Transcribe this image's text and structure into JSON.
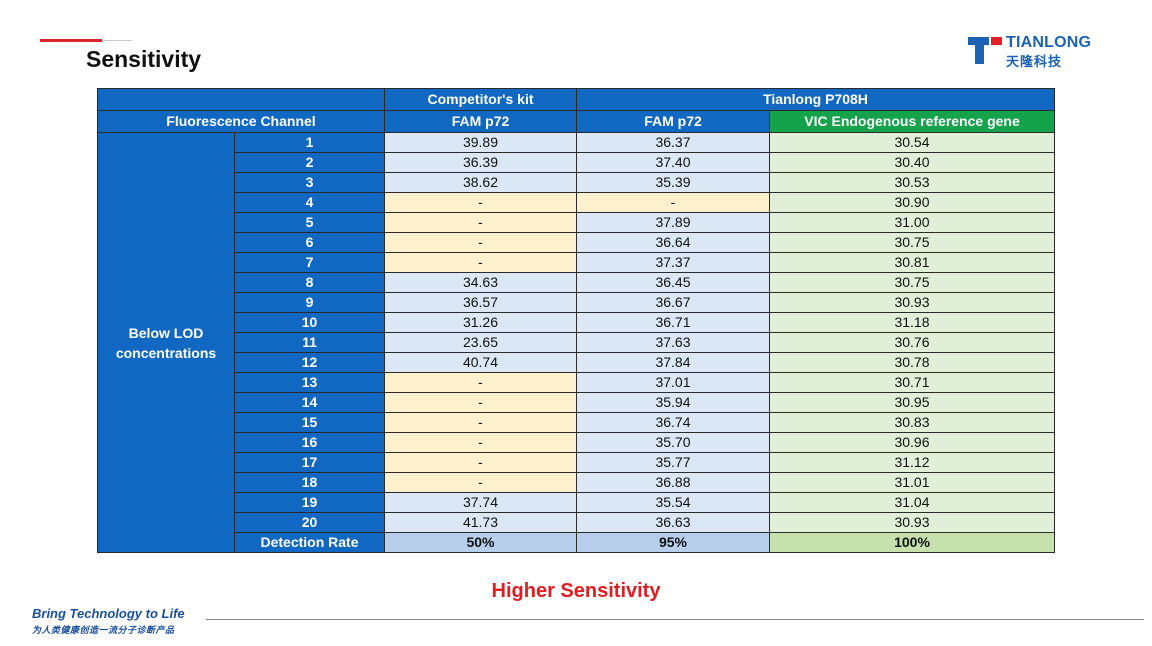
{
  "page": {
    "title": "Sensitivity",
    "highlight": "Higher Sensitivity",
    "slogan": "Bring Technology to Life",
    "slogan_cn": "为人类健康创造一流分子诊断产品"
  },
  "logo": {
    "name": "TIANLONG",
    "name_cn": "天隆科技",
    "mark_colors": {
      "blue": "#1a62b3",
      "red": "#e02127"
    }
  },
  "table": {
    "group_headers": {
      "competitor": "Competitor's kit",
      "tianlong": "Tianlong P708H"
    },
    "column_headers": {
      "channel": "Fluorescence Channel",
      "competitor_fam": "FAM p72",
      "tianlong_fam": "FAM p72",
      "tianlong_vic": "VIC Endogenous reference gene"
    },
    "group_label": "Below LOD concentrations",
    "rows": [
      {
        "id": "1",
        "competitor": "39.89",
        "fam": "36.37",
        "vic": "30.54"
      },
      {
        "id": "2",
        "competitor": "36.39",
        "fam": "37.40",
        "vic": "30.40"
      },
      {
        "id": "3",
        "competitor": "38.62",
        "fam": "35.39",
        "vic": "30.53"
      },
      {
        "id": "4",
        "competitor": "-",
        "fam": "-",
        "vic": "30.90"
      },
      {
        "id": "5",
        "competitor": "-",
        "fam": "37.89",
        "vic": "31.00"
      },
      {
        "id": "6",
        "competitor": "-",
        "fam": "36.64",
        "vic": "30.75"
      },
      {
        "id": "7",
        "competitor": "-",
        "fam": "37.37",
        "vic": "30.81"
      },
      {
        "id": "8",
        "competitor": "34.63",
        "fam": "36.45",
        "vic": "30.75"
      },
      {
        "id": "9",
        "competitor": "36.57",
        "fam": "36.67",
        "vic": "30.93"
      },
      {
        "id": "10",
        "competitor": "31.26",
        "fam": "36.71",
        "vic": "31.18"
      },
      {
        "id": "11",
        "competitor": "23.65",
        "fam": "37.63",
        "vic": "30.76"
      },
      {
        "id": "12",
        "competitor": "40.74",
        "fam": "37.84",
        "vic": "30.78"
      },
      {
        "id": "13",
        "competitor": "-",
        "fam": "37.01",
        "vic": "30.71"
      },
      {
        "id": "14",
        "competitor": "-",
        "fam": "35.94",
        "vic": "30.95"
      },
      {
        "id": "15",
        "competitor": "-",
        "fam": "36.74",
        "vic": "30.83"
      },
      {
        "id": "16",
        "competitor": "-",
        "fam": "35.70",
        "vic": "30.96"
      },
      {
        "id": "17",
        "competitor": "-",
        "fam": "35.77",
        "vic": "31.12"
      },
      {
        "id": "18",
        "competitor": "-",
        "fam": "36.88",
        "vic": "31.01"
      },
      {
        "id": "19",
        "competitor": "37.74",
        "fam": "35.54",
        "vic": "31.04"
      },
      {
        "id": "20",
        "competitor": "41.73",
        "fam": "36.63",
        "vic": "30.93"
      }
    ],
    "detection_rate": {
      "label": "Detection Rate",
      "competitor": "50%",
      "fam": "95%",
      "vic": "100%"
    }
  }
}
